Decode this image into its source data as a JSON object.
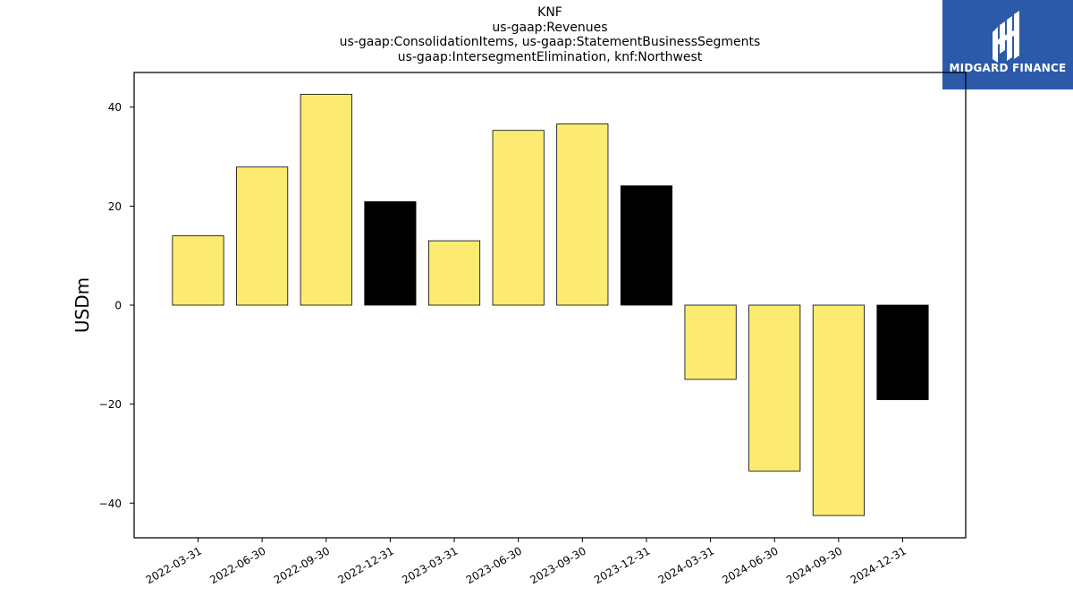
{
  "chart_data": {
    "type": "bar",
    "title_lines": [
      "KNF",
      "us-gaap:Revenues",
      "us-gaap:ConsolidationItems, us-gaap:StatementBusinessSegments",
      "us-gaap:IntersegmentElimination, knf:Northwest"
    ],
    "ylabel": "USDm",
    "xlabel": "",
    "ylim": [
      -47,
      47
    ],
    "yticks": [
      40,
      20,
      0,
      -20,
      -40
    ],
    "ytick_labels": [
      "40",
      "20",
      "0",
      "−20",
      "−40"
    ],
    "categories": [
      "2022-03-31",
      "2022-06-30",
      "2022-09-30",
      "2022-12-31",
      "2023-03-31",
      "2023-06-30",
      "2023-09-30",
      "2023-12-31",
      "2024-03-31",
      "2024-06-30",
      "2024-09-30",
      "2024-12-31"
    ],
    "values": [
      14.0,
      27.9,
      42.6,
      20.9,
      13.0,
      35.3,
      36.6,
      24.1,
      -15.0,
      -33.5,
      -42.5,
      -19.1
    ],
    "bar_colors": [
      "#fdeb71",
      "#fdeb71",
      "#fdeb71",
      "#000000",
      "#fdeb71",
      "#fdeb71",
      "#fdeb71",
      "#000000",
      "#fdeb71",
      "#fdeb71",
      "#fdeb71",
      "#000000"
    ],
    "grid": false,
    "legend": "none"
  },
  "logo": {
    "text": "MIDGARD FINANCE",
    "background": "#2c5aa8",
    "icon": "midgard-logo-icon"
  }
}
